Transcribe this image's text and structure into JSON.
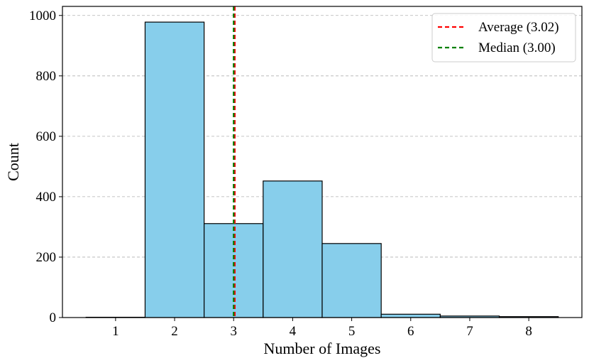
{
  "chart_data": {
    "type": "bar",
    "title": "",
    "xlabel": "Number of Images",
    "ylabel": "Count",
    "categories": [
      "1",
      "2",
      "3",
      "4",
      "5",
      "6",
      "7",
      "8"
    ],
    "x": [
      1,
      2,
      3,
      4,
      5,
      6,
      7,
      8
    ],
    "values": [
      1,
      978,
      311,
      452,
      245,
      11,
      5,
      3
    ],
    "xlim": [
      0.1,
      8.9
    ],
    "ylim": [
      0,
      1030
    ],
    "yticks": [
      0,
      200,
      400,
      600,
      800,
      1000
    ],
    "grid": "y-dashed",
    "bar_color": "#87CEEB",
    "edge_color": "#000000",
    "legend": {
      "placement": "top-right",
      "entries": [
        {
          "label": "Average (3.02)",
          "value": 3.02,
          "color": "#ff0000",
          "style": "dashed"
        },
        {
          "label": "Median (3.00)",
          "value": 3.0,
          "color": "#008000",
          "style": "dashed"
        }
      ]
    }
  }
}
